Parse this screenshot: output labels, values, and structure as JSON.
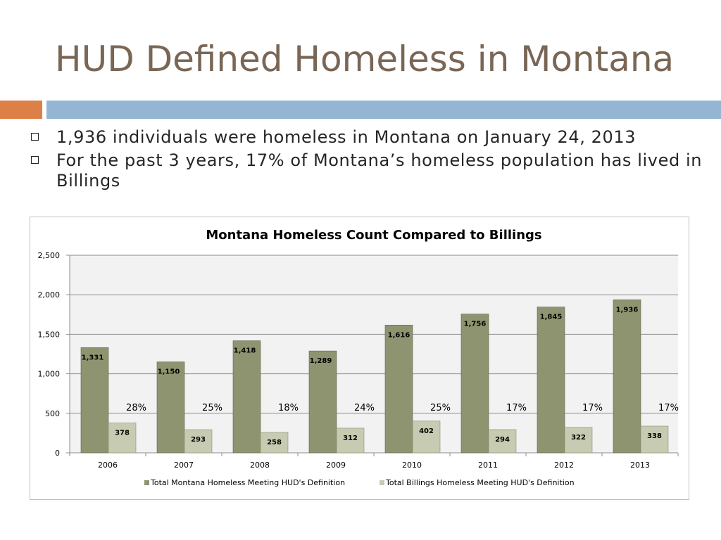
{
  "slide": {
    "title": "HUD Defined Homeless in Montana",
    "bullets": [
      "1,936 individuals were homeless in Montana on January 24, 2013",
      "For the past 3 years, 17% of Montana’s homeless population has lived in Billings"
    ],
    "colors": {
      "title": "#7a6655",
      "accent_orange": "#dd8047",
      "accent_blue": "#94b6d2"
    }
  },
  "chart_data": {
    "type": "bar",
    "title": "Montana Homeless Count Compared to Billings",
    "categories": [
      "2006",
      "2007",
      "2008",
      "2009",
      "2010",
      "2011",
      "2012",
      "2013"
    ],
    "series": [
      {
        "name": "Total Montana Homeless Meeting HUD's Definition",
        "values": [
          1331,
          1150,
          1418,
          1289,
          1616,
          1756,
          1845,
          1936
        ],
        "labels": [
          "1,331",
          "1,150",
          "1,418",
          "1,289",
          "1,616",
          "1,756",
          "1,845",
          "1,936"
        ],
        "color": "#8f9470"
      },
      {
        "name": "Total Billings Homeless Meeting HUD's Definition",
        "values": [
          378,
          293,
          258,
          312,
          402,
          294,
          322,
          338
        ],
        "labels": [
          "378",
          "293",
          "258",
          "312",
          "402",
          "294",
          "322",
          "338"
        ],
        "color": "#c6cbb1"
      }
    ],
    "percent_labels": [
      "28%",
      "25%",
      "18%",
      "24%",
      "25%",
      "17%",
      "17%",
      "17%"
    ],
    "ylim": [
      0,
      2500
    ],
    "yticks": [
      0,
      500,
      1000,
      1500,
      2000,
      2500
    ],
    "ytick_labels": [
      "0",
      "500",
      "1,000",
      "1,500",
      "2,000",
      "2,500"
    ],
    "grid": true,
    "plot_background": "#f2f2f2",
    "legend_position": "bottom"
  }
}
